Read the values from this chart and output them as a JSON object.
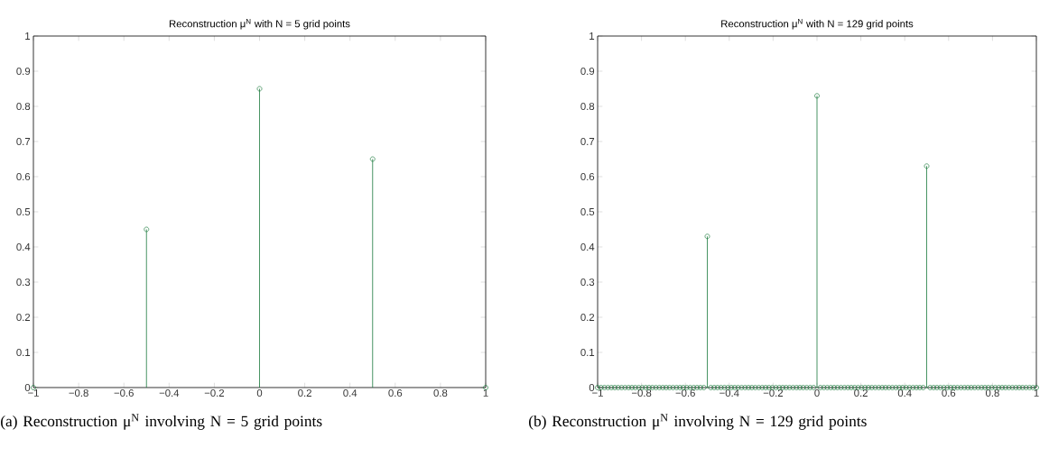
{
  "chart_data": [
    {
      "type": "lollipop",
      "title": "Reconstruction μ$^{N}$ with N = 5 grid points",
      "annotations": [
        "(a) Reconstruction μ$^{N}$ involving N = 5 grid points"
      ],
      "x": [
        -1,
        -0.5,
        0,
        0.5,
        1
      ],
      "values": [
        0,
        0.45,
        0.85,
        0.65,
        0
      ],
      "color": "#1b7a3c",
      "marker": "circle",
      "xlim": [
        -1,
        1
      ],
      "ylim": [
        0,
        1
      ],
      "xticks": [
        {
          "value": -1,
          "label": "−1"
        },
        {
          "value": -0.8,
          "label": "−0.8"
        },
        {
          "value": -0.6,
          "label": "−0.6"
        },
        {
          "value": -0.4,
          "label": "−0.4"
        },
        {
          "value": -0.2,
          "label": "−0.2"
        },
        0,
        0.2,
        0.4,
        0.6,
        0.8,
        1
      ],
      "yticks": [
        0,
        0.1,
        0.2,
        0.3,
        0.4,
        0.5,
        0.6,
        0.7,
        0.8,
        0.9,
        1
      ]
    },
    {
      "type": "lollipop",
      "title": "Reconstruction μ$^{N}$ with N = 129 grid points",
      "annotations": [
        "(b) Reconstruction μ$^{N}$ involving N = 129 grid points"
      ],
      "x": [
        -1,
        -0.984375,
        -0.96875,
        -0.953125,
        -0.9375,
        -0.921875,
        -0.90625,
        -0.890625,
        -0.875,
        -0.859375,
        -0.84375,
        -0.828125,
        -0.8125,
        -0.796875,
        -0.78125,
        -0.765625,
        -0.75,
        -0.734375,
        -0.71875,
        -0.703125,
        -0.6875,
        -0.671875,
        -0.65625,
        -0.640625,
        -0.625,
        -0.609375,
        -0.59375,
        -0.578125,
        -0.5625,
        -0.546875,
        -0.53125,
        -0.515625,
        -0.5,
        -0.484375,
        -0.46875,
        -0.453125,
        -0.4375,
        -0.421875,
        -0.40625,
        -0.390625,
        -0.375,
        -0.359375,
        -0.34375,
        -0.328125,
        -0.3125,
        -0.296875,
        -0.28125,
        -0.265625,
        -0.25,
        -0.234375,
        -0.21875,
        -0.203125,
        -0.1875,
        -0.171875,
        -0.15625,
        -0.140625,
        -0.125,
        -0.109375,
        -0.09375,
        -0.078125,
        -0.0625,
        -0.046875,
        -0.03125,
        -0.015625,
        0,
        0.015625,
        0.03125,
        0.046875,
        0.0625,
        0.078125,
        0.09375,
        0.109375,
        0.125,
        0.140625,
        0.15625,
        0.171875,
        0.1875,
        0.203125,
        0.21875,
        0.234375,
        0.25,
        0.265625,
        0.28125,
        0.296875,
        0.3125,
        0.328125,
        0.34375,
        0.359375,
        0.375,
        0.390625,
        0.40625,
        0.421875,
        0.4375,
        0.453125,
        0.46875,
        0.484375,
        0.5,
        0.515625,
        0.53125,
        0.546875,
        0.5625,
        0.578125,
        0.59375,
        0.609375,
        0.625,
        0.640625,
        0.65625,
        0.671875,
        0.6875,
        0.703125,
        0.71875,
        0.734375,
        0.75,
        0.765625,
        0.78125,
        0.796875,
        0.8125,
        0.828125,
        0.84375,
        0.859375,
        0.875,
        0.890625,
        0.90625,
        0.921875,
        0.9375,
        0.953125,
        0.96875,
        0.984375,
        1
      ],
      "values": [
        0,
        0,
        0,
        0,
        0,
        0,
        0,
        0,
        0,
        0,
        0,
        0,
        0,
        0,
        0,
        0,
        0,
        0,
        0,
        0,
        0,
        0,
        0,
        0,
        0,
        0,
        0,
        0,
        0,
        0,
        0,
        0,
        0.43,
        0,
        0,
        0,
        0,
        0,
        0,
        0,
        0,
        0,
        0,
        0,
        0,
        0,
        0,
        0,
        0,
        0,
        0,
        0,
        0,
        0,
        0,
        0,
        0,
        0,
        0,
        0,
        0,
        0,
        0,
        0,
        0.83,
        0,
        0,
        0,
        0,
        0,
        0,
        0,
        0,
        0,
        0,
        0,
        0,
        0,
        0,
        0,
        0,
        0,
        0,
        0,
        0,
        0,
        0,
        0,
        0,
        0,
        0,
        0,
        0,
        0,
        0,
        0,
        0.63,
        0,
        0,
        0,
        0,
        0,
        0,
        0,
        0,
        0,
        0,
        0,
        0,
        0,
        0,
        0,
        0,
        0,
        0,
        0,
        0,
        0,
        0,
        0,
        0,
        0,
        0,
        0,
        0,
        0,
        0,
        0,
        0
      ],
      "color": "#1b7a3c",
      "marker": "circle",
      "xlim": [
        -1,
        1
      ],
      "ylim": [
        0,
        1
      ],
      "xticks": [
        {
          "value": -1,
          "label": "−1"
        },
        {
          "value": -0.8,
          "label": "−0.8"
        },
        {
          "value": -0.6,
          "label": "−0.6"
        },
        {
          "value": -0.4,
          "label": "−0.4"
        },
        {
          "value": -0.2,
          "label": "−0.2"
        },
        0,
        0.2,
        0.4,
        0.6,
        0.8,
        1
      ],
      "yticks": [
        0,
        0.1,
        0.2,
        0.3,
        0.4,
        0.5,
        0.6,
        0.7,
        0.8,
        0.9,
        1
      ]
    }
  ]
}
